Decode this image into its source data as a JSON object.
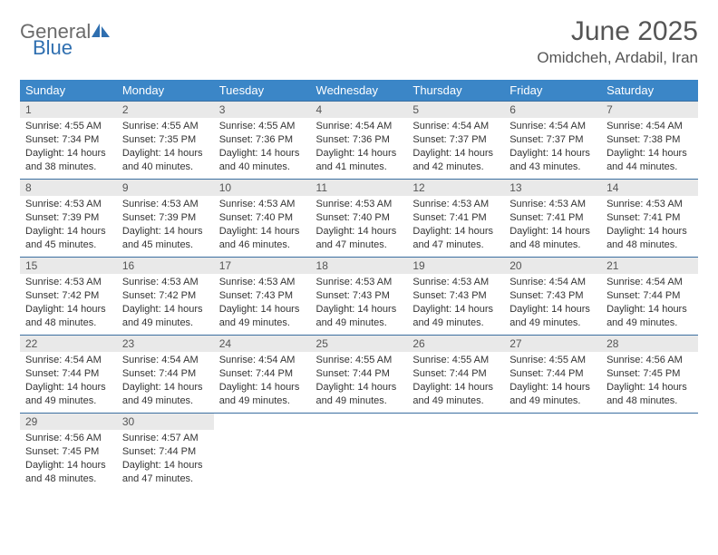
{
  "logo": {
    "text1": "General",
    "text2": "Blue"
  },
  "title": {
    "month": "June 2025",
    "location": "Omidcheh, Ardabil, Iran"
  },
  "colors": {
    "header_bg": "#3b86c7",
    "header_text": "#ffffff",
    "daynum_bg": "#e9e9e9",
    "border": "#3b6fa0",
    "logo_gray": "#6b6b6b",
    "logo_blue": "#2f6fb0"
  },
  "dayNames": [
    "Sunday",
    "Monday",
    "Tuesday",
    "Wednesday",
    "Thursday",
    "Friday",
    "Saturday"
  ],
  "weeks": [
    [
      {
        "n": "1",
        "sr": "Sunrise: 4:55 AM",
        "ss": "Sunset: 7:34 PM",
        "d1": "Daylight: 14 hours",
        "d2": "and 38 minutes."
      },
      {
        "n": "2",
        "sr": "Sunrise: 4:55 AM",
        "ss": "Sunset: 7:35 PM",
        "d1": "Daylight: 14 hours",
        "d2": "and 40 minutes."
      },
      {
        "n": "3",
        "sr": "Sunrise: 4:55 AM",
        "ss": "Sunset: 7:36 PM",
        "d1": "Daylight: 14 hours",
        "d2": "and 40 minutes."
      },
      {
        "n": "4",
        "sr": "Sunrise: 4:54 AM",
        "ss": "Sunset: 7:36 PM",
        "d1": "Daylight: 14 hours",
        "d2": "and 41 minutes."
      },
      {
        "n": "5",
        "sr": "Sunrise: 4:54 AM",
        "ss": "Sunset: 7:37 PM",
        "d1": "Daylight: 14 hours",
        "d2": "and 42 minutes."
      },
      {
        "n": "6",
        "sr": "Sunrise: 4:54 AM",
        "ss": "Sunset: 7:37 PM",
        "d1": "Daylight: 14 hours",
        "d2": "and 43 minutes."
      },
      {
        "n": "7",
        "sr": "Sunrise: 4:54 AM",
        "ss": "Sunset: 7:38 PM",
        "d1": "Daylight: 14 hours",
        "d2": "and 44 minutes."
      }
    ],
    [
      {
        "n": "8",
        "sr": "Sunrise: 4:53 AM",
        "ss": "Sunset: 7:39 PM",
        "d1": "Daylight: 14 hours",
        "d2": "and 45 minutes."
      },
      {
        "n": "9",
        "sr": "Sunrise: 4:53 AM",
        "ss": "Sunset: 7:39 PM",
        "d1": "Daylight: 14 hours",
        "d2": "and 45 minutes."
      },
      {
        "n": "10",
        "sr": "Sunrise: 4:53 AM",
        "ss": "Sunset: 7:40 PM",
        "d1": "Daylight: 14 hours",
        "d2": "and 46 minutes."
      },
      {
        "n": "11",
        "sr": "Sunrise: 4:53 AM",
        "ss": "Sunset: 7:40 PM",
        "d1": "Daylight: 14 hours",
        "d2": "and 47 minutes."
      },
      {
        "n": "12",
        "sr": "Sunrise: 4:53 AM",
        "ss": "Sunset: 7:41 PM",
        "d1": "Daylight: 14 hours",
        "d2": "and 47 minutes."
      },
      {
        "n": "13",
        "sr": "Sunrise: 4:53 AM",
        "ss": "Sunset: 7:41 PM",
        "d1": "Daylight: 14 hours",
        "d2": "and 48 minutes."
      },
      {
        "n": "14",
        "sr": "Sunrise: 4:53 AM",
        "ss": "Sunset: 7:41 PM",
        "d1": "Daylight: 14 hours",
        "d2": "and 48 minutes."
      }
    ],
    [
      {
        "n": "15",
        "sr": "Sunrise: 4:53 AM",
        "ss": "Sunset: 7:42 PM",
        "d1": "Daylight: 14 hours",
        "d2": "and 48 minutes."
      },
      {
        "n": "16",
        "sr": "Sunrise: 4:53 AM",
        "ss": "Sunset: 7:42 PM",
        "d1": "Daylight: 14 hours",
        "d2": "and 49 minutes."
      },
      {
        "n": "17",
        "sr": "Sunrise: 4:53 AM",
        "ss": "Sunset: 7:43 PM",
        "d1": "Daylight: 14 hours",
        "d2": "and 49 minutes."
      },
      {
        "n": "18",
        "sr": "Sunrise: 4:53 AM",
        "ss": "Sunset: 7:43 PM",
        "d1": "Daylight: 14 hours",
        "d2": "and 49 minutes."
      },
      {
        "n": "19",
        "sr": "Sunrise: 4:53 AM",
        "ss": "Sunset: 7:43 PM",
        "d1": "Daylight: 14 hours",
        "d2": "and 49 minutes."
      },
      {
        "n": "20",
        "sr": "Sunrise: 4:54 AM",
        "ss": "Sunset: 7:43 PM",
        "d1": "Daylight: 14 hours",
        "d2": "and 49 minutes."
      },
      {
        "n": "21",
        "sr": "Sunrise: 4:54 AM",
        "ss": "Sunset: 7:44 PM",
        "d1": "Daylight: 14 hours",
        "d2": "and 49 minutes."
      }
    ],
    [
      {
        "n": "22",
        "sr": "Sunrise: 4:54 AM",
        "ss": "Sunset: 7:44 PM",
        "d1": "Daylight: 14 hours",
        "d2": "and 49 minutes."
      },
      {
        "n": "23",
        "sr": "Sunrise: 4:54 AM",
        "ss": "Sunset: 7:44 PM",
        "d1": "Daylight: 14 hours",
        "d2": "and 49 minutes."
      },
      {
        "n": "24",
        "sr": "Sunrise: 4:54 AM",
        "ss": "Sunset: 7:44 PM",
        "d1": "Daylight: 14 hours",
        "d2": "and 49 minutes."
      },
      {
        "n": "25",
        "sr": "Sunrise: 4:55 AM",
        "ss": "Sunset: 7:44 PM",
        "d1": "Daylight: 14 hours",
        "d2": "and 49 minutes."
      },
      {
        "n": "26",
        "sr": "Sunrise: 4:55 AM",
        "ss": "Sunset: 7:44 PM",
        "d1": "Daylight: 14 hours",
        "d2": "and 49 minutes."
      },
      {
        "n": "27",
        "sr": "Sunrise: 4:55 AM",
        "ss": "Sunset: 7:44 PM",
        "d1": "Daylight: 14 hours",
        "d2": "and 49 minutes."
      },
      {
        "n": "28",
        "sr": "Sunrise: 4:56 AM",
        "ss": "Sunset: 7:45 PM",
        "d1": "Daylight: 14 hours",
        "d2": "and 48 minutes."
      }
    ],
    [
      {
        "n": "29",
        "sr": "Sunrise: 4:56 AM",
        "ss": "Sunset: 7:45 PM",
        "d1": "Daylight: 14 hours",
        "d2": "and 48 minutes."
      },
      {
        "n": "30",
        "sr": "Sunrise: 4:57 AM",
        "ss": "Sunset: 7:44 PM",
        "d1": "Daylight: 14 hours",
        "d2": "and 47 minutes."
      },
      null,
      null,
      null,
      null,
      null
    ]
  ]
}
